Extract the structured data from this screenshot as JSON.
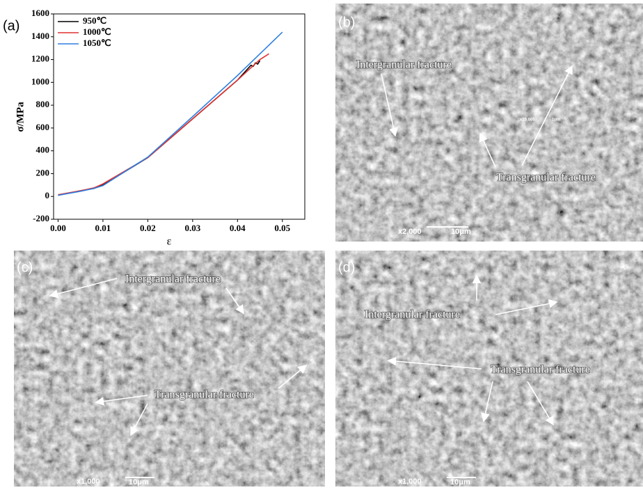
{
  "chart_data": {
    "type": "line",
    "panel_label": "(a)",
    "x_label": "ε",
    "y_label": "σ/MPa",
    "xlim": [
      -0.001,
      0.055
    ],
    "ylim": [
      -200,
      1600
    ],
    "xticks": [
      {
        "value": 0,
        "label": "0.00"
      },
      0.01,
      0.02,
      0.03,
      0.04,
      0.05
    ],
    "yticks": [
      -200,
      0,
      200,
      400,
      600,
      800,
      1000,
      1200,
      1400,
      1600
    ],
    "legend": "top-left",
    "series": [
      {
        "name": "950℃",
        "color": "#000000",
        "x": [
          0,
          0.005,
          0.008,
          0.01,
          0.02,
          0.03,
          0.04,
          0.043,
          0.0435,
          0.044,
          0.0445,
          0.045
        ],
        "values": [
          10,
          50,
          70,
          100,
          340,
          680,
          1020,
          1150,
          1140,
          1170,
          1160,
          1190
        ]
      },
      {
        "name": "1000℃",
        "color": "#e03030",
        "x": [
          0,
          0.005,
          0.008,
          0.01,
          0.02,
          0.03,
          0.04,
          0.045,
          0.047
        ],
        "values": [
          15,
          50,
          75,
          110,
          340,
          680,
          1020,
          1200,
          1250
        ]
      },
      {
        "name": "1050℃",
        "color": "#2f7fe0",
        "x": [
          0,
          0.005,
          0.008,
          0.01,
          0.02,
          0.03,
          0.04,
          0.045,
          0.05
        ],
        "values": [
          10,
          45,
          70,
          95,
          345,
          700,
          1060,
          1250,
          1440
        ]
      }
    ]
  },
  "panels": [
    {
      "label": "(b)",
      "annotations": [
        "Intergranular fracture",
        "Transgranular fracture"
      ],
      "magnification": "x2,000",
      "scale": "10μm",
      "inset": {
        "magnification": "x10,000",
        "scale": "1μm"
      }
    },
    {
      "label": "(c)",
      "annotations": [
        "Intergranular fracture",
        "Transgranular fracture"
      ],
      "magnification": "x1,000",
      "scale": "10μm"
    },
    {
      "label": "(d)",
      "annotations": [
        "Intergranular fracture",
        "Transgranular fracture"
      ],
      "magnification": "x1,000",
      "scale": "10μm"
    }
  ]
}
